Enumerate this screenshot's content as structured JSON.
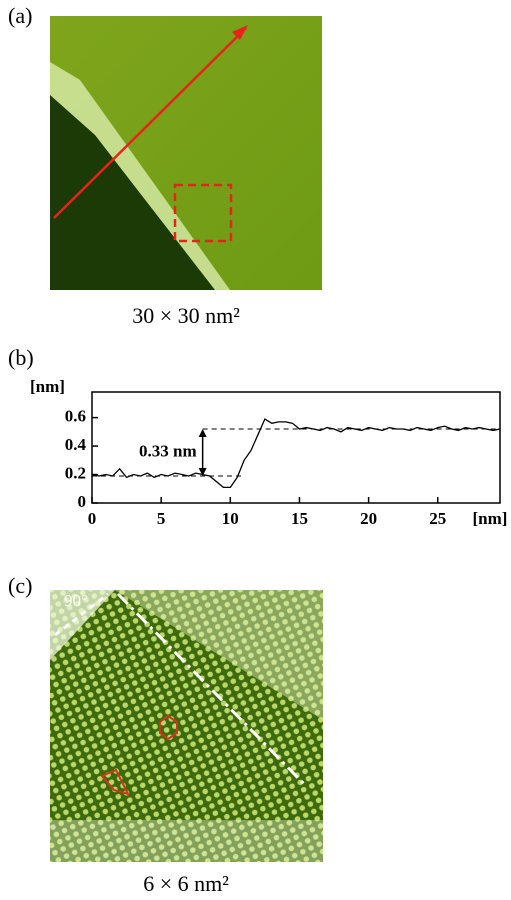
{
  "panels": [
    {
      "label": "(a)",
      "caption": "30 × 30 nm²"
    },
    {
      "label": "(b)"
    },
    {
      "label": "(c)",
      "caption": "6 × 6 nm²",
      "annotation": "90°"
    }
  ],
  "chart_data": {
    "type": "line",
    "ylabel": "[nm]",
    "xlabel": "[nm]",
    "x": [
      0,
      0.5,
      1,
      1.5,
      2,
      2.5,
      3,
      3.5,
      4,
      4.5,
      5,
      5.5,
      6,
      6.5,
      7,
      7.5,
      8,
      8.5,
      9,
      9.5,
      10,
      10.5,
      11,
      11.5,
      12,
      12.5,
      13,
      13.5,
      14,
      14.5,
      15,
      15.5,
      16,
      16.5,
      17,
      17.5,
      18,
      18.5,
      19,
      19.5,
      20,
      20.5,
      21,
      21.5,
      22,
      22.5,
      23,
      23.5,
      24,
      24.5,
      25,
      25.5,
      26,
      26.5,
      27,
      27.5,
      28,
      28.5,
      29,
      29.5
    ],
    "values": [
      0.2,
      0.19,
      0.2,
      0.19,
      0.24,
      0.18,
      0.2,
      0.19,
      0.21,
      0.18,
      0.2,
      0.19,
      0.21,
      0.2,
      0.19,
      0.21,
      0.2,
      0.19,
      0.15,
      0.11,
      0.11,
      0.18,
      0.3,
      0.37,
      0.48,
      0.59,
      0.56,
      0.57,
      0.57,
      0.56,
      0.52,
      0.53,
      0.52,
      0.51,
      0.53,
      0.52,
      0.5,
      0.53,
      0.52,
      0.51,
      0.53,
      0.52,
      0.51,
      0.53,
      0.52,
      0.52,
      0.51,
      0.53,
      0.52,
      0.51,
      0.53,
      0.54,
      0.52,
      0.51,
      0.53,
      0.52,
      0.53,
      0.52,
      0.51,
      0.52
    ],
    "color": "#000000",
    "xlim": [
      0,
      29.5
    ],
    "ylim": [
      0,
      0.78
    ],
    "xticks": [
      0,
      5,
      10,
      15,
      20,
      25
    ],
    "yticks": [
      0,
      0.2,
      0.4,
      0.6
    ],
    "reference_lines": [
      {
        "y": 0.52,
        "x": [
          8,
          29.5
        ]
      },
      {
        "y": 0.19,
        "x": [
          0,
          11
        ]
      }
    ],
    "annotation": {
      "text": "0.33 nm",
      "x": 8,
      "y": [
        0.19,
        0.52
      ]
    }
  }
}
